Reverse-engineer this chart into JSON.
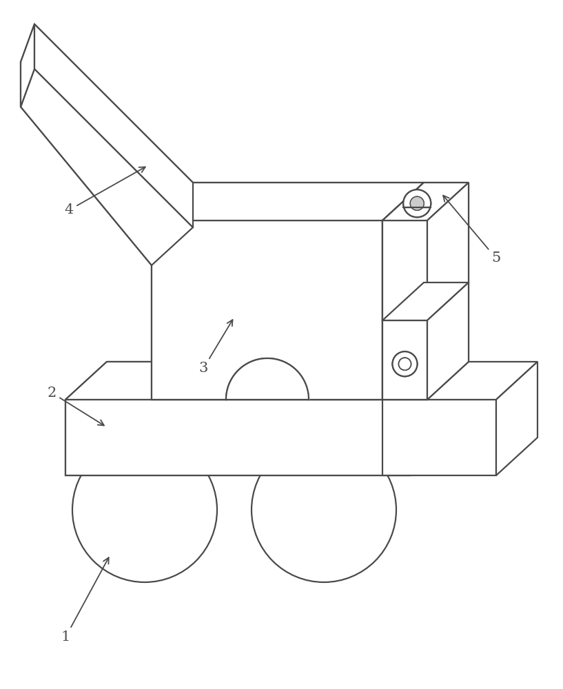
{
  "bg_color": "#ffffff",
  "line_color": "#4a4a4a",
  "line_width": 1.6,
  "fig_width": 8.17,
  "fig_height": 10.0,
  "label_fontsize": 15
}
